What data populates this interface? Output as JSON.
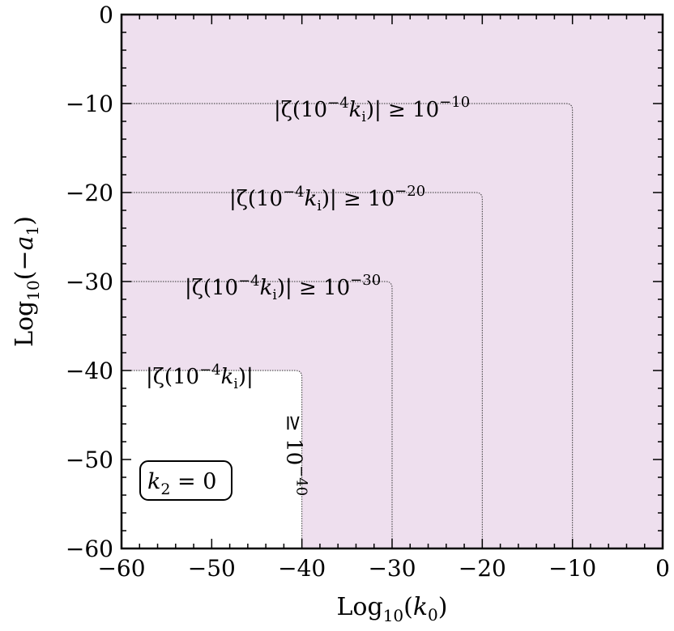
{
  "chart_data": {
    "type": "contour",
    "title": "",
    "xlabel": {
      "prefix": "Log",
      "sub": "10",
      "open": "(",
      "var": "k",
      "varsub": "0",
      "close": ")"
    },
    "ylabel": {
      "prefix": "Log",
      "sub": "10",
      "open": "(",
      "minus": "−",
      "var": "a",
      "varsub": "1",
      "close": ")"
    },
    "xlim": [
      -60,
      0
    ],
    "ylim": [
      -60,
      0
    ],
    "x_ticks": [
      -60,
      -50,
      -40,
      -30,
      -20,
      -10,
      0
    ],
    "y_ticks": [
      0,
      -10,
      -20,
      -30,
      -40,
      -50,
      -60
    ],
    "x_tick_labels": [
      "−60",
      "−50",
      "−40",
      "−30",
      "−20",
      "−10",
      "0"
    ],
    "y_tick_labels": [
      "0",
      "−10",
      "−20",
      "−30",
      "−40",
      "−50",
      "−60"
    ],
    "levels": [
      {
        "threshold_x": -10,
        "threshold_y": -10,
        "color": "#a54fa5",
        "label": {
          "pre": "|ζ(10",
          "exp": "−4",
          "k": "k",
          "ksub": "i",
          "post": ")| ≥ 10",
          "pow": "−10"
        }
      },
      {
        "threshold_x": -20,
        "threshold_y": -20,
        "color": "#c07ebd",
        "label": {
          "pre": "|ζ(10",
          "exp": "−4",
          "k": "k",
          "ksub": "i",
          "post": ")| ≥ 10",
          "pow": "−20"
        }
      },
      {
        "threshold_x": -30,
        "threshold_y": -30,
        "color": "#dab3d7",
        "label": {
          "pre": "|ζ(10",
          "exp": "−4",
          "k": "k",
          "ksub": "i",
          "post": ")| ≥ 10",
          "pow": "−30"
        }
      },
      {
        "threshold_x": -40,
        "threshold_y": -40,
        "color": "#eedfee",
        "label": {
          "pre": "|ζ(10",
          "exp": "−4",
          "k": "k",
          "ksub": "i",
          "post": ")|",
          "rotated_ge": "≥",
          "rotated_base": "10",
          "rotated_pow": "−40"
        }
      }
    ],
    "background_color": "#ffffff",
    "annotation": {
      "var": "k",
      "sub": "2",
      "eq": " = 0"
    }
  }
}
